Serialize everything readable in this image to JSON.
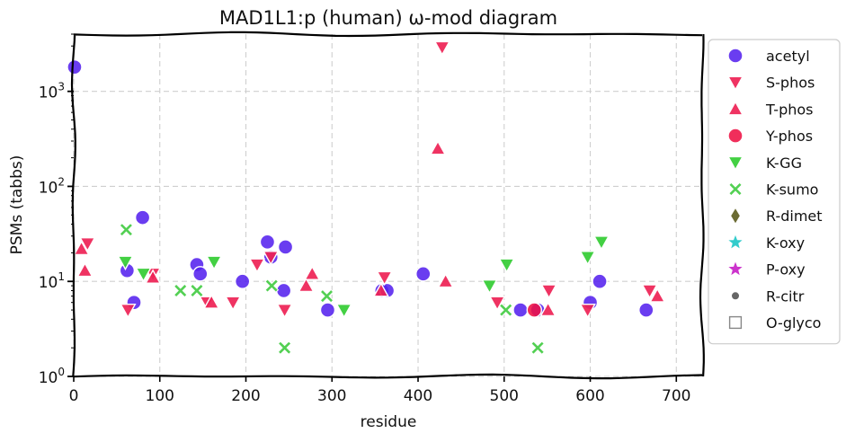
{
  "chart_data": {
    "type": "scatter",
    "title": "MAD1L1:p (human) ω-mod diagram",
    "xlabel": "residue",
    "ylabel": "PSMs (tabbs)",
    "xlim": [
      0,
      730
    ],
    "ylim": [
      1,
      4000
    ],
    "yscale": "log",
    "xticks": [
      0,
      100,
      200,
      300,
      400,
      500,
      600,
      700
    ],
    "yticks": [
      {
        "value": 1,
        "base": "10",
        "exp": "0"
      },
      {
        "value": 10,
        "base": "10",
        "exp": "1"
      },
      {
        "value": 100,
        "base": "10",
        "exp": "2"
      },
      {
        "value": 1000,
        "base": "10",
        "exp": "3"
      }
    ],
    "grid": true,
    "legend_position": "outside-right",
    "series": [
      {
        "name": "acetyl",
        "marker": "circle",
        "color": "#5522ee",
        "points": [
          [
            1,
            1800
          ],
          [
            62,
            13
          ],
          [
            70,
            6
          ],
          [
            80,
            47
          ],
          [
            143,
            15
          ],
          [
            147,
            12
          ],
          [
            196,
            10
          ],
          [
            225,
            26
          ],
          [
            229,
            18
          ],
          [
            244,
            8
          ],
          [
            246,
            23
          ],
          [
            295,
            5
          ],
          [
            358,
            8
          ],
          [
            364,
            8
          ],
          [
            406,
            12
          ],
          [
            519,
            5
          ],
          [
            539,
            5
          ],
          [
            600,
            6
          ],
          [
            611,
            10
          ],
          [
            665,
            5
          ]
        ]
      },
      {
        "name": "S-phos",
        "marker": "triangle-down",
        "color": "#ee2255",
        "points": [
          [
            16,
            25
          ],
          [
            63,
            5
          ],
          [
            92,
            12
          ],
          [
            155,
            6
          ],
          [
            185,
            6
          ],
          [
            213,
            15
          ],
          [
            229,
            18
          ],
          [
            245,
            5
          ],
          [
            361,
            11
          ],
          [
            428,
            2900
          ],
          [
            492,
            6
          ],
          [
            552,
            8
          ],
          [
            597,
            5
          ],
          [
            669,
            8
          ]
        ]
      },
      {
        "name": "T-phos",
        "marker": "triangle-up",
        "color": "#ee2255",
        "points": [
          [
            9,
            22
          ],
          [
            13,
            13
          ],
          [
            92,
            11
          ],
          [
            160,
            6
          ],
          [
            270,
            9
          ],
          [
            277,
            12
          ],
          [
            357,
            8
          ],
          [
            423,
            250
          ],
          [
            432,
            10
          ],
          [
            551,
            5
          ],
          [
            678,
            7
          ]
        ]
      },
      {
        "name": "Y-phos",
        "marker": "circle",
        "color": "#ee1144",
        "points": [
          [
            535,
            5
          ]
        ]
      },
      {
        "name": "K-GG",
        "marker": "triangle-down",
        "color": "#33cc33",
        "points": [
          [
            60,
            16
          ],
          [
            81,
            12
          ],
          [
            163,
            16
          ],
          [
            314,
            5
          ],
          [
            483,
            9
          ],
          [
            503,
            15
          ],
          [
            597,
            18
          ],
          [
            613,
            26
          ]
        ]
      },
      {
        "name": "K-sumo",
        "marker": "cross",
        "color": "#44cc44",
        "points": [
          [
            61,
            35
          ],
          [
            124,
            8
          ],
          [
            143,
            8
          ],
          [
            230,
            9
          ],
          [
            245,
            2
          ],
          [
            294,
            7
          ],
          [
            502,
            5
          ],
          [
            539,
            2
          ]
        ]
      },
      {
        "name": "R-dimet",
        "marker": "diamond",
        "color": "#6b6b33",
        "points": []
      },
      {
        "name": "K-oxy",
        "marker": "star",
        "color": "#33cccc",
        "points": []
      },
      {
        "name": "P-oxy",
        "marker": "star",
        "color": "#cc33cc",
        "points": []
      },
      {
        "name": "R-citr",
        "marker": "small-circle",
        "color": "#666666",
        "points": []
      },
      {
        "name": "O-glyco",
        "marker": "open-square",
        "color": "#888888",
        "points": []
      }
    ]
  }
}
